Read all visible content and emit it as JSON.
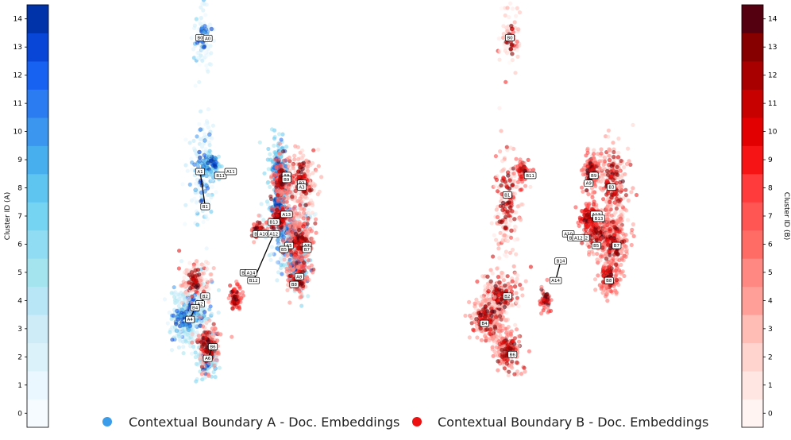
{
  "chart_data": {
    "type": "scatter",
    "title": "",
    "colors": {
      "series_a_marker": "#3b9cea",
      "series_b_marker": "#ee1111",
      "cmap_a": [
        "#f5fbff",
        "#eaf7ff",
        "#dcf2fb",
        "#cdecf8",
        "#b9e6f7",
        "#a3e4ef",
        "#90dcf3",
        "#74d4f1",
        "#5ec5f0",
        "#48afef",
        "#3a96ee",
        "#2a7cf0",
        "#1862f2",
        "#0746d6",
        "#0032aa"
      ],
      "cmap_b": [
        "#fff4f2",
        "#ffe6e3",
        "#ffd3ce",
        "#ffbdb6",
        "#ff9f98",
        "#ff8882",
        "#ff6c66",
        "#ff5553",
        "#ff3b3b",
        "#f71414",
        "#e20000",
        "#c70000",
        "#a80000",
        "#870000",
        "#550010"
      ],
      "pale_a": "#cfeef9",
      "pale_b": "#ffd0cc"
    },
    "legend": {
      "position": "bottom-center",
      "entries": [
        {
          "name": "Contextual Boundary A - Doc. Embeddings",
          "color": "#3b9cea"
        },
        {
          "name": "Contextual Boundary B - Doc. Embeddings",
          "color": "#ee1111"
        }
      ]
    },
    "colorbars": [
      {
        "id": "A",
        "label": "Cluster ID (A)",
        "side": "left",
        "range": [
          0,
          14
        ],
        "ticks": [
          0,
          1,
          2,
          3,
          4,
          5,
          6,
          7,
          8,
          9,
          10,
          11,
          12,
          13,
          14
        ]
      },
      {
        "id": "B",
        "label": "Cluster ID (B)",
        "side": "right",
        "range": [
          0,
          14
        ],
        "ticks": [
          0,
          1,
          2,
          3,
          4,
          5,
          6,
          7,
          8,
          9,
          10,
          11,
          12,
          13,
          14
        ]
      }
    ],
    "panels": [
      {
        "name": "overlay",
        "clusters": [
          {
            "cluster": "A0",
            "series": "A",
            "x": 0.36,
            "y": 0.06,
            "n": 90,
            "spread": [
              0.04,
              0.08
            ]
          },
          {
            "cluster": "A1",
            "series": "A",
            "x": 0.36,
            "y": 0.4,
            "n": 160,
            "spread": [
              0.05,
              0.12
            ]
          },
          {
            "cluster": "A2",
            "series": "A",
            "x": 0.32,
            "y": 0.76,
            "n": 260,
            "spread": [
              0.07,
              0.07
            ]
          },
          {
            "cluster": "A3",
            "series": "A",
            "x": 0.7,
            "y": 0.56,
            "n": 240,
            "spread": [
              0.07,
              0.08
            ]
          },
          {
            "cluster": "A4",
            "series": "A",
            "x": 0.28,
            "y": 0.78,
            "n": 160,
            "spread": [
              0.05,
              0.05
            ]
          },
          {
            "cluster": "A6",
            "series": "A",
            "x": 0.38,
            "y": 0.88,
            "n": 140,
            "spread": [
              0.04,
              0.05
            ]
          },
          {
            "cluster": "A8",
            "series": "A",
            "x": 0.73,
            "y": 0.64,
            "n": 150,
            "spread": [
              0.04,
              0.05
            ]
          },
          {
            "cluster": "A9",
            "series": "A",
            "x": 0.66,
            "y": 0.4,
            "n": 170,
            "spread": [
              0.04,
              0.08
            ]
          },
          {
            "cluster": "A11",
            "series": "A",
            "x": 0.4,
            "y": 0.38,
            "n": 60,
            "spread": [
              0.03,
              0.03
            ]
          },
          {
            "cluster": "A13",
            "series": "A",
            "x": 0.66,
            "y": 0.49,
            "n": 80,
            "spread": [
              0.03,
              0.03
            ]
          },
          {
            "cluster": "B2",
            "series": "B",
            "x": 0.33,
            "y": 0.68,
            "n": 120,
            "spread": [
              0.05,
              0.05
            ]
          },
          {
            "cluster": "B3",
            "series": "B",
            "x": 0.75,
            "y": 0.43,
            "n": 180,
            "spread": [
              0.05,
              0.08
            ]
          },
          {
            "cluster": "B6",
            "series": "B",
            "x": 0.38,
            "y": 0.85,
            "n": 150,
            "spread": [
              0.04,
              0.05
            ]
          },
          {
            "cluster": "B7",
            "series": "B",
            "x": 0.74,
            "y": 0.58,
            "n": 200,
            "spread": [
              0.05,
              0.06
            ]
          },
          {
            "cluster": "B8",
            "series": "B",
            "x": 0.73,
            "y": 0.67,
            "n": 120,
            "spread": [
              0.04,
              0.04
            ]
          },
          {
            "cluster": "B9",
            "series": "B",
            "x": 0.67,
            "y": 0.42,
            "n": 120,
            "spread": [
              0.03,
              0.05
            ]
          },
          {
            "cluster": "B10",
            "series": "B",
            "x": 0.58,
            "y": 0.55,
            "n": 60,
            "spread": [
              0.03,
              0.02
            ]
          },
          {
            "cluster": "B13",
            "series": "B",
            "x": 0.66,
            "y": 0.52,
            "n": 90,
            "spread": [
              0.03,
              0.03
            ]
          },
          {
            "cluster": "B12",
            "series": "B",
            "x": 0.49,
            "y": 0.72,
            "n": 60,
            "spread": [
              0.02,
              0.03
            ]
          }
        ],
        "labels": [
          {
            "text": "B0",
            "x": 0.35,
            "y": 0.056
          },
          {
            "text": "A0",
            "x": 0.38,
            "y": 0.058
          },
          {
            "text": "A1",
            "x": 0.35,
            "y": 0.4
          },
          {
            "text": "B1",
            "x": 0.37,
            "y": 0.49
          },
          {
            "text": "B11",
            "x": 0.43,
            "y": 0.41
          },
          {
            "text": "A11",
            "x": 0.47,
            "y": 0.4
          },
          {
            "text": "A9",
            "x": 0.69,
            "y": 0.41
          },
          {
            "text": "B9",
            "x": 0.69,
            "y": 0.42
          },
          {
            "text": "B3",
            "x": 0.75,
            "y": 0.43
          },
          {
            "text": "A3",
            "x": 0.75,
            "y": 0.44
          },
          {
            "text": "A13",
            "x": 0.69,
            "y": 0.51
          },
          {
            "text": "B13",
            "x": 0.64,
            "y": 0.53
          },
          {
            "text": "B10",
            "x": 0.58,
            "y": 0.56
          },
          {
            "text": "A10",
            "x": 0.6,
            "y": 0.56
          },
          {
            "text": "A12",
            "x": 0.64,
            "y": 0.56
          },
          {
            "text": "A5",
            "x": 0.7,
            "y": 0.59
          },
          {
            "text": "B5",
            "x": 0.68,
            "y": 0.6
          },
          {
            "text": "A7",
            "x": 0.77,
            "y": 0.59
          },
          {
            "text": "B7",
            "x": 0.77,
            "y": 0.6
          },
          {
            "text": "B14",
            "x": 0.53,
            "y": 0.66
          },
          {
            "text": "A14",
            "x": 0.55,
            "y": 0.66
          },
          {
            "text": "B12",
            "x": 0.56,
            "y": 0.68
          },
          {
            "text": "A8",
            "x": 0.74,
            "y": 0.67
          },
          {
            "text": "B8",
            "x": 0.72,
            "y": 0.69
          },
          {
            "text": "B2",
            "x": 0.37,
            "y": 0.72
          },
          {
            "text": "A2",
            "x": 0.35,
            "y": 0.74
          },
          {
            "text": "B4",
            "x": 0.33,
            "y": 0.75
          },
          {
            "text": "A4",
            "x": 0.31,
            "y": 0.78
          },
          {
            "text": "B6",
            "x": 0.4,
            "y": 0.85
          },
          {
            "text": "A6",
            "x": 0.38,
            "y": 0.88
          }
        ],
        "arrows": [
          {
            "from": "A0",
            "to": "B0"
          },
          {
            "from": "A1",
            "to": "B1"
          },
          {
            "from": "A11",
            "to": "B11"
          },
          {
            "from": "A12",
            "to": "B12"
          },
          {
            "from": "A6",
            "to": "B6"
          },
          {
            "from": "A4",
            "to": "B4"
          },
          {
            "from": "A2",
            "to": "B2"
          }
        ]
      },
      {
        "name": "boundary-B-only",
        "clusters": [
          {
            "cluster": "B0",
            "series": "B",
            "x": 0.35,
            "y": 0.06,
            "n": 70,
            "spread": [
              0.04,
              0.08
            ]
          },
          {
            "cluster": "B1",
            "series": "B",
            "x": 0.34,
            "y": 0.48,
            "n": 160,
            "spread": [
              0.05,
              0.13
            ]
          },
          {
            "cluster": "B2",
            "series": "B",
            "x": 0.31,
            "y": 0.72,
            "n": 220,
            "spread": [
              0.07,
              0.06
            ]
          },
          {
            "cluster": "B3",
            "series": "B",
            "x": 0.75,
            "y": 0.43,
            "n": 220,
            "spread": [
              0.06,
              0.09
            ]
          },
          {
            "cluster": "B4",
            "series": "B",
            "x": 0.26,
            "y": 0.78,
            "n": 180,
            "spread": [
              0.06,
              0.05
            ]
          },
          {
            "cluster": "B5",
            "series": "B",
            "x": 0.71,
            "y": 0.56,
            "n": 180,
            "spread": [
              0.06,
              0.05
            ]
          },
          {
            "cluster": "B6",
            "series": "B",
            "x": 0.34,
            "y": 0.86,
            "n": 160,
            "spread": [
              0.05,
              0.05
            ]
          },
          {
            "cluster": "B7",
            "series": "B",
            "x": 0.76,
            "y": 0.58,
            "n": 180,
            "spread": [
              0.05,
              0.06
            ]
          },
          {
            "cluster": "B8",
            "series": "B",
            "x": 0.74,
            "y": 0.67,
            "n": 120,
            "spread": [
              0.04,
              0.04
            ]
          },
          {
            "cluster": "B9",
            "series": "B",
            "x": 0.67,
            "y": 0.4,
            "n": 110,
            "spread": [
              0.03,
              0.05
            ]
          },
          {
            "cluster": "B11",
            "series": "B",
            "x": 0.4,
            "y": 0.4,
            "n": 50,
            "spread": [
              0.03,
              0.03
            ]
          },
          {
            "cluster": "B13",
            "series": "B",
            "x": 0.66,
            "y": 0.52,
            "n": 90,
            "spread": [
              0.03,
              0.03
            ]
          },
          {
            "cluster": "B12",
            "series": "B",
            "x": 0.49,
            "y": 0.73,
            "n": 40,
            "spread": [
              0.02,
              0.03
            ]
          }
        ],
        "labels": [
          {
            "text": "B0",
            "x": 0.35,
            "y": 0.056
          },
          {
            "text": "B1",
            "x": 0.34,
            "y": 0.46
          },
          {
            "text": "B11",
            "x": 0.43,
            "y": 0.41
          },
          {
            "text": "A9",
            "x": 0.66,
            "y": 0.43
          },
          {
            "text": "B9",
            "x": 0.68,
            "y": 0.41
          },
          {
            "text": "B3",
            "x": 0.75,
            "y": 0.44
          },
          {
            "text": "A13",
            "x": 0.69,
            "y": 0.51
          },
          {
            "text": "B13",
            "x": 0.7,
            "y": 0.52
          },
          {
            "text": "A10",
            "x": 0.58,
            "y": 0.56
          },
          {
            "text": "B10",
            "x": 0.6,
            "y": 0.57
          },
          {
            "text": "B12",
            "x": 0.64,
            "y": 0.57
          },
          {
            "text": "A12",
            "x": 0.62,
            "y": 0.57
          },
          {
            "text": "B5",
            "x": 0.69,
            "y": 0.59
          },
          {
            "text": "B7",
            "x": 0.77,
            "y": 0.59
          },
          {
            "text": "B14",
            "x": 0.55,
            "y": 0.63
          },
          {
            "text": "A14",
            "x": 0.53,
            "y": 0.68
          },
          {
            "text": "B8",
            "x": 0.74,
            "y": 0.68
          },
          {
            "text": "B2",
            "x": 0.34,
            "y": 0.72
          },
          {
            "text": "B4",
            "x": 0.25,
            "y": 0.79
          },
          {
            "text": "B6",
            "x": 0.36,
            "y": 0.87
          }
        ],
        "arrows": [
          {
            "from": "A14",
            "to": "B14"
          },
          {
            "from": "B9",
            "to": "A9"
          }
        ]
      }
    ]
  }
}
